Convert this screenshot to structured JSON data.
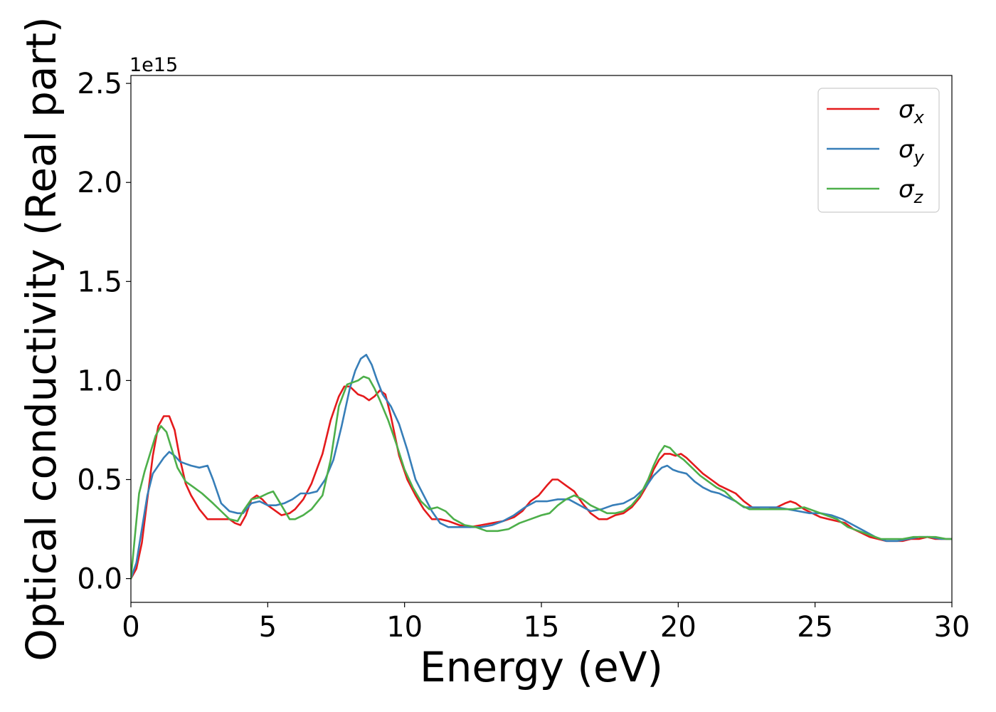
{
  "chart_data": {
    "type": "line",
    "title": "",
    "xlabel": "Energy (eV)",
    "ylabel": "Optical conductivity (Real part)",
    "y_offset_text": "1e15",
    "xlim": [
      0,
      30
    ],
    "ylim": [
      -0.12,
      2.54
    ],
    "y_scale_factor": 1000000000000000.0,
    "x_ticks": [
      0,
      5,
      10,
      15,
      20,
      25,
      30
    ],
    "x_tick_labels": [
      "0",
      "5",
      "10",
      "15",
      "20",
      "25",
      "30"
    ],
    "y_ticks": [
      0.0,
      0.5,
      1.0,
      1.5,
      2.0,
      2.5
    ],
    "y_tick_labels": [
      "0.0",
      "0.5",
      "1.0",
      "1.5",
      "2.0",
      "2.5"
    ],
    "grid": false,
    "legend": {
      "placement": "upper right",
      "entries": [
        {
          "symbol": "σ",
          "sub": "x",
          "color": "#e41a1c"
        },
        {
          "symbol": "σ",
          "sub": "y",
          "color": "#377eb8"
        },
        {
          "symbol": "σ",
          "sub": "z",
          "color": "#4daf4a"
        }
      ]
    },
    "series": [
      {
        "color": "#e41a1c",
        "x": [
          0,
          0.2,
          0.4,
          0.6,
          0.8,
          1.0,
          1.2,
          1.4,
          1.6,
          1.8,
          2.0,
          2.2,
          2.5,
          2.8,
          3.0,
          3.3,
          3.6,
          3.8,
          4.0,
          4.2,
          4.4,
          4.6,
          4.8,
          5.0,
          5.2,
          5.5,
          5.8,
          6.0,
          6.3,
          6.6,
          7.0,
          7.3,
          7.6,
          7.8,
          8.0,
          8.3,
          8.5,
          8.7,
          8.9,
          9.1,
          9.3,
          9.5,
          9.8,
          10.1,
          10.4,
          10.7,
          11.0,
          11.3,
          11.6,
          12.0,
          12.4,
          12.8,
          13.2,
          13.6,
          14.0,
          14.3,
          14.6,
          14.9,
          15.2,
          15.4,
          15.6,
          15.9,
          16.2,
          16.5,
          16.8,
          17.1,
          17.4,
          17.7,
          18.0,
          18.3,
          18.6,
          18.9,
          19.1,
          19.3,
          19.5,
          19.7,
          19.9,
          20.1,
          20.3,
          20.6,
          20.9,
          21.2,
          21.5,
          21.8,
          22.1,
          22.4,
          22.7,
          23.0,
          23.3,
          23.6,
          23.9,
          24.1,
          24.3,
          24.6,
          24.9,
          25.2,
          25.5,
          25.8,
          26.1,
          26.4,
          26.7,
          27.0,
          27.3,
          27.6,
          27.9,
          28.2,
          28.5,
          28.8,
          29.1,
          29.4,
          29.7,
          30.0
        ],
        "y": [
          0.0,
          0.05,
          0.18,
          0.4,
          0.62,
          0.77,
          0.82,
          0.82,
          0.75,
          0.6,
          0.48,
          0.42,
          0.35,
          0.3,
          0.3,
          0.3,
          0.3,
          0.28,
          0.27,
          0.32,
          0.4,
          0.42,
          0.4,
          0.37,
          0.35,
          0.32,
          0.33,
          0.35,
          0.4,
          0.48,
          0.63,
          0.8,
          0.92,
          0.97,
          0.97,
          0.93,
          0.92,
          0.9,
          0.92,
          0.95,
          0.93,
          0.82,
          0.62,
          0.5,
          0.42,
          0.35,
          0.3,
          0.3,
          0.29,
          0.27,
          0.26,
          0.27,
          0.28,
          0.29,
          0.31,
          0.34,
          0.39,
          0.42,
          0.47,
          0.5,
          0.5,
          0.47,
          0.44,
          0.38,
          0.33,
          0.3,
          0.3,
          0.32,
          0.33,
          0.36,
          0.41,
          0.48,
          0.55,
          0.6,
          0.63,
          0.63,
          0.62,
          0.63,
          0.61,
          0.57,
          0.53,
          0.5,
          0.47,
          0.45,
          0.43,
          0.39,
          0.36,
          0.35,
          0.35,
          0.36,
          0.38,
          0.39,
          0.38,
          0.35,
          0.33,
          0.31,
          0.3,
          0.29,
          0.28,
          0.25,
          0.23,
          0.21,
          0.2,
          0.19,
          0.19,
          0.19,
          0.2,
          0.2,
          0.21,
          0.2,
          0.2,
          0.2
        ]
      },
      {
        "color": "#377eb8",
        "x": [
          0,
          0.2,
          0.4,
          0.6,
          0.8,
          1.0,
          1.2,
          1.4,
          1.6,
          1.8,
          2.0,
          2.2,
          2.5,
          2.8,
          3.0,
          3.3,
          3.6,
          3.9,
          4.1,
          4.4,
          4.7,
          5.0,
          5.3,
          5.6,
          5.9,
          6.2,
          6.5,
          6.8,
          7.1,
          7.4,
          7.7,
          8.0,
          8.2,
          8.4,
          8.6,
          8.8,
          9.0,
          9.2,
          9.5,
          9.8,
          10.1,
          10.4,
          10.7,
          11.0,
          11.3,
          11.6,
          12.0,
          12.4,
          12.8,
          13.2,
          13.6,
          14.0,
          14.4,
          14.8,
          15.2,
          15.6,
          16.0,
          16.4,
          16.8,
          17.2,
          17.6,
          18.0,
          18.4,
          18.8,
          19.1,
          19.4,
          19.6,
          19.8,
          20.0,
          20.3,
          20.6,
          20.9,
          21.2,
          21.5,
          21.8,
          22.1,
          22.4,
          22.8,
          23.2,
          23.6,
          24.0,
          24.4,
          24.8,
          25.2,
          25.6,
          26.0,
          26.4,
          26.8,
          27.2,
          27.6,
          28.0,
          28.4,
          28.8,
          29.2,
          29.6,
          30.0
        ],
        "y": [
          0.0,
          0.08,
          0.25,
          0.42,
          0.53,
          0.57,
          0.61,
          0.64,
          0.62,
          0.59,
          0.58,
          0.57,
          0.56,
          0.57,
          0.5,
          0.38,
          0.34,
          0.33,
          0.33,
          0.38,
          0.39,
          0.37,
          0.37,
          0.38,
          0.4,
          0.43,
          0.43,
          0.44,
          0.5,
          0.6,
          0.77,
          0.96,
          1.05,
          1.11,
          1.13,
          1.08,
          1.0,
          0.93,
          0.87,
          0.78,
          0.65,
          0.5,
          0.42,
          0.34,
          0.28,
          0.26,
          0.26,
          0.26,
          0.26,
          0.27,
          0.29,
          0.32,
          0.36,
          0.39,
          0.39,
          0.4,
          0.4,
          0.37,
          0.34,
          0.35,
          0.37,
          0.38,
          0.41,
          0.46,
          0.52,
          0.56,
          0.57,
          0.55,
          0.54,
          0.53,
          0.49,
          0.46,
          0.44,
          0.43,
          0.41,
          0.39,
          0.36,
          0.36,
          0.36,
          0.36,
          0.35,
          0.34,
          0.33,
          0.33,
          0.32,
          0.3,
          0.27,
          0.24,
          0.21,
          0.19,
          0.19,
          0.2,
          0.21,
          0.21,
          0.2,
          0.2
        ]
      },
      {
        "color": "#4daf4a",
        "x": [
          0,
          0.15,
          0.3,
          0.5,
          0.7,
          0.9,
          1.1,
          1.3,
          1.5,
          1.7,
          2.0,
          2.3,
          2.6,
          3.0,
          3.3,
          3.6,
          3.9,
          4.1,
          4.4,
          4.7,
          5.0,
          5.2,
          5.5,
          5.8,
          6.0,
          6.3,
          6.6,
          7.0,
          7.3,
          7.6,
          7.9,
          8.1,
          8.3,
          8.5,
          8.7,
          8.9,
          9.1,
          9.4,
          9.7,
          10.0,
          10.3,
          10.6,
          10.9,
          11.2,
          11.5,
          11.8,
          12.2,
          12.6,
          13.0,
          13.4,
          13.8,
          14.2,
          14.6,
          15.0,
          15.3,
          15.6,
          15.9,
          16.2,
          16.5,
          16.8,
          17.1,
          17.4,
          17.7,
          18.0,
          18.3,
          18.6,
          18.9,
          19.1,
          19.3,
          19.5,
          19.7,
          19.9,
          20.2,
          20.5,
          20.8,
          21.1,
          21.4,
          21.7,
          22.0,
          22.3,
          22.6,
          23.0,
          23.4,
          23.8,
          24.2,
          24.6,
          25.0,
          25.4,
          25.8,
          26.2,
          26.6,
          27.0,
          27.4,
          27.8,
          28.2,
          28.6,
          29.0,
          29.4,
          29.8,
          30.0
        ],
        "y": [
          0.0,
          0.22,
          0.43,
          0.54,
          0.63,
          0.72,
          0.77,
          0.74,
          0.65,
          0.56,
          0.49,
          0.46,
          0.43,
          0.38,
          0.34,
          0.3,
          0.29,
          0.34,
          0.4,
          0.41,
          0.43,
          0.44,
          0.37,
          0.3,
          0.3,
          0.32,
          0.35,
          0.42,
          0.6,
          0.87,
          0.98,
          0.99,
          1.0,
          1.02,
          1.01,
          0.96,
          0.9,
          0.8,
          0.68,
          0.55,
          0.46,
          0.39,
          0.35,
          0.36,
          0.34,
          0.3,
          0.27,
          0.26,
          0.24,
          0.24,
          0.25,
          0.28,
          0.3,
          0.32,
          0.33,
          0.37,
          0.4,
          0.42,
          0.4,
          0.37,
          0.35,
          0.33,
          0.33,
          0.34,
          0.37,
          0.42,
          0.5,
          0.57,
          0.63,
          0.67,
          0.66,
          0.63,
          0.6,
          0.56,
          0.52,
          0.49,
          0.46,
          0.44,
          0.4,
          0.37,
          0.35,
          0.35,
          0.35,
          0.35,
          0.35,
          0.36,
          0.34,
          0.32,
          0.3,
          0.26,
          0.24,
          0.22,
          0.2,
          0.2,
          0.2,
          0.21,
          0.21,
          0.21,
          0.2,
          0.2
        ]
      }
    ]
  }
}
